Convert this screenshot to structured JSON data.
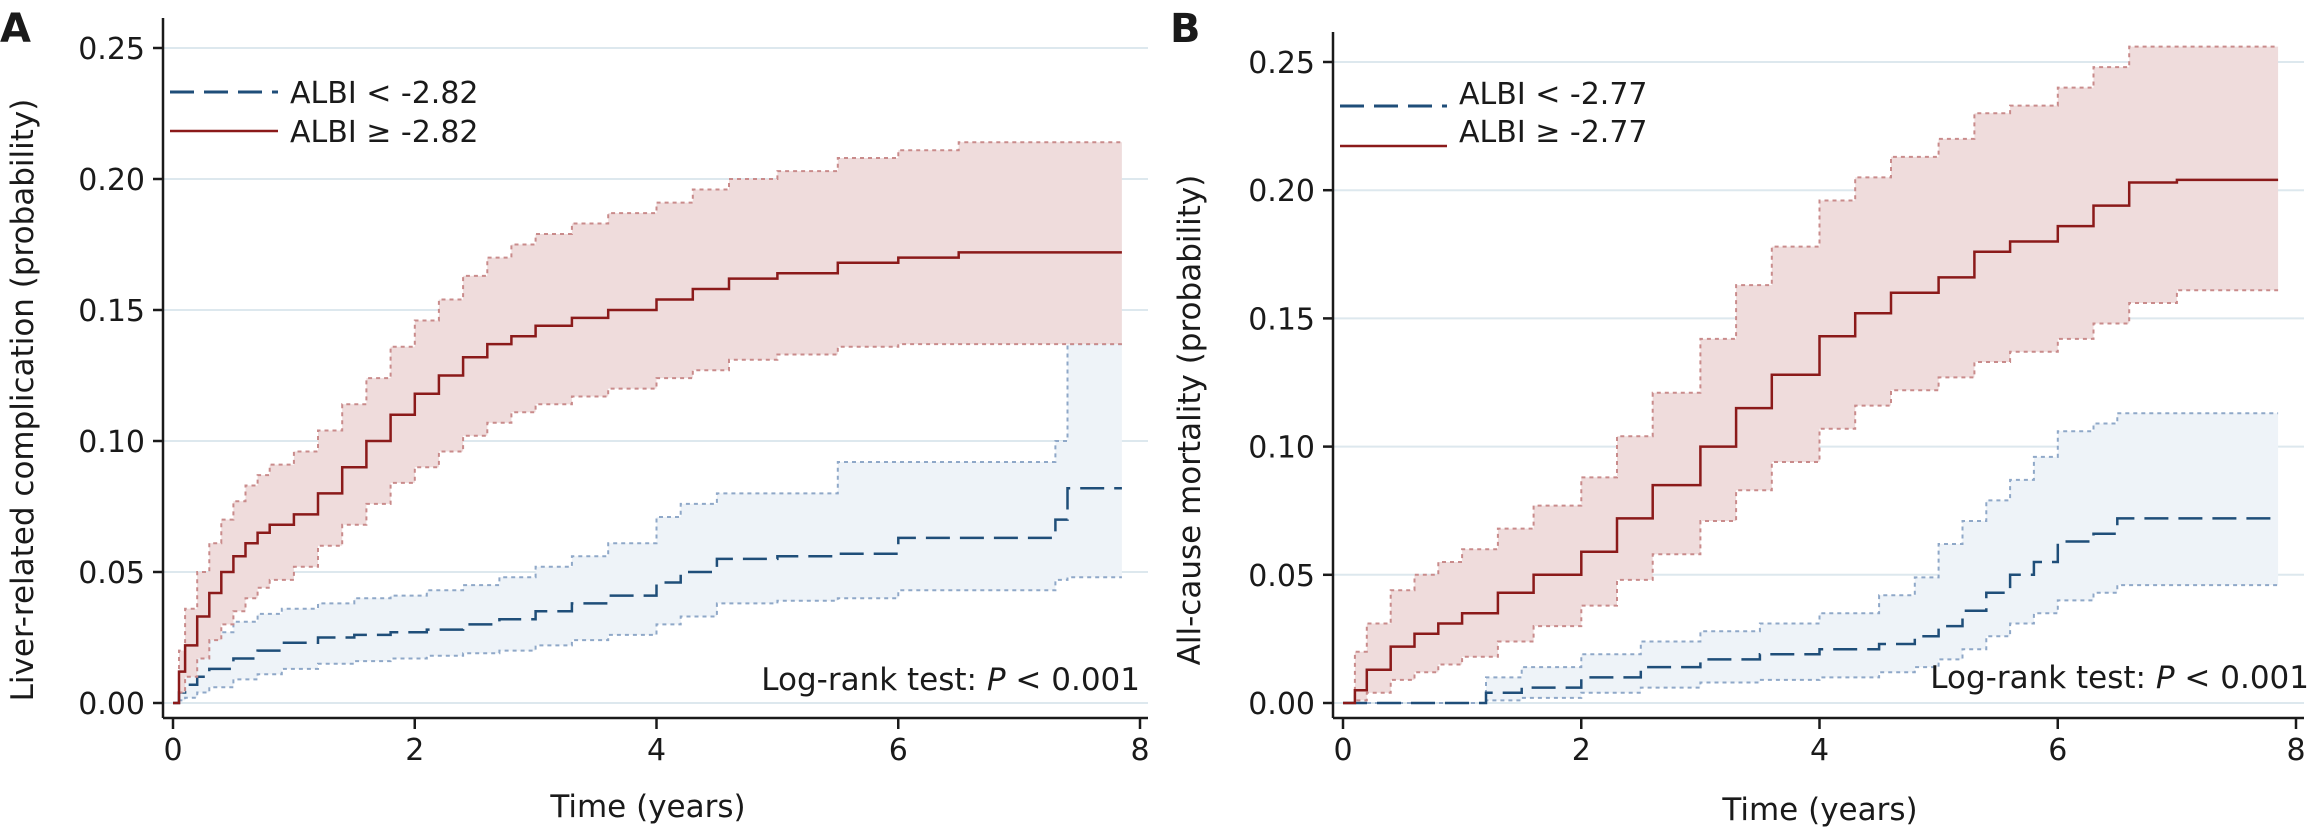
{
  "colors": {
    "series_low": "#1f4e79",
    "series_high": "#8b1a1a",
    "ci_low_fill": "#eef3f8",
    "ci_low_edge": "#8fa8c8",
    "ci_high_fill": "#efdcdc",
    "ci_high_edge": "#c98b8b",
    "grid": "#dde8ee",
    "axis": "#1a1a1a"
  },
  "chart_data": [
    {
      "type": "line",
      "panel_label": "A",
      "xlabel": "Time (years)",
      "ylabel": "Liver-related complication (probability)",
      "xlim": [
        0,
        8
      ],
      "ylim": [
        0,
        0.25
      ],
      "x_ticks": [
        "0",
        "2",
        "4",
        "6",
        "8"
      ],
      "y_ticks": [
        "0.00",
        "0.05",
        "0.10",
        "0.15",
        "0.20",
        "0.25"
      ],
      "grid": true,
      "legend_position": "top-left",
      "annotation": {
        "prefix": "Log-rank test: ",
        "italic": "P",
        "suffix": " < 0.001"
      },
      "series": [
        {
          "name": "ALBI < -2.82",
          "style": "dashed",
          "x": [
            0,
            0.05,
            0.1,
            0.2,
            0.3,
            0.5,
            0.7,
            0.9,
            1.2,
            1.5,
            1.8,
            2.1,
            2.4,
            2.7,
            3.0,
            3.3,
            3.6,
            4.0,
            4.2,
            4.5,
            5.0,
            5.5,
            6.0,
            6.5,
            7.0,
            7.3,
            7.4,
            7.85
          ],
          "y": [
            0,
            0.004,
            0.007,
            0.01,
            0.013,
            0.017,
            0.02,
            0.023,
            0.025,
            0.026,
            0.027,
            0.028,
            0.03,
            0.032,
            0.035,
            0.038,
            0.041,
            0.046,
            0.05,
            0.055,
            0.056,
            0.057,
            0.063,
            0.063,
            0.063,
            0.07,
            0.082,
            0.082
          ],
          "ci_lower": [
            0,
            0.001,
            0.002,
            0.004,
            0.006,
            0.009,
            0.011,
            0.013,
            0.015,
            0.016,
            0.017,
            0.018,
            0.019,
            0.02,
            0.022,
            0.024,
            0.026,
            0.03,
            0.033,
            0.038,
            0.039,
            0.04,
            0.043,
            0.043,
            0.043,
            0.047,
            0.048,
            0.048
          ],
          "ci_upper": [
            0,
            0.012,
            0.018,
            0.023,
            0.027,
            0.031,
            0.034,
            0.036,
            0.038,
            0.04,
            0.041,
            0.043,
            0.045,
            0.048,
            0.052,
            0.056,
            0.061,
            0.071,
            0.076,
            0.08,
            0.08,
            0.092,
            0.092,
            0.092,
            0.092,
            0.1,
            0.137,
            0.137
          ]
        },
        {
          "name": "ALBI ≥ -2.82",
          "style": "solid",
          "x": [
            0,
            0.05,
            0.1,
            0.2,
            0.3,
            0.4,
            0.5,
            0.6,
            0.7,
            0.8,
            1.0,
            1.2,
            1.4,
            1.6,
            1.8,
            2.0,
            2.2,
            2.4,
            2.6,
            2.8,
            3.0,
            3.3,
            3.6,
            4.0,
            4.3,
            4.6,
            5.0,
            5.5,
            6.0,
            6.5,
            7.0,
            7.85
          ],
          "y": [
            0,
            0.012,
            0.022,
            0.033,
            0.042,
            0.05,
            0.056,
            0.061,
            0.065,
            0.068,
            0.072,
            0.08,
            0.09,
            0.1,
            0.11,
            0.118,
            0.125,
            0.132,
            0.137,
            0.14,
            0.144,
            0.147,
            0.15,
            0.154,
            0.158,
            0.162,
            0.164,
            0.168,
            0.17,
            0.172,
            0.172,
            0.172
          ],
          "ci_lower": [
            0,
            0.004,
            0.01,
            0.017,
            0.024,
            0.03,
            0.035,
            0.04,
            0.044,
            0.047,
            0.052,
            0.06,
            0.068,
            0.076,
            0.084,
            0.09,
            0.096,
            0.102,
            0.107,
            0.111,
            0.114,
            0.117,
            0.12,
            0.124,
            0.127,
            0.131,
            0.133,
            0.136,
            0.137,
            0.137,
            0.137,
            0.137
          ],
          "ci_upper": [
            0,
            0.02,
            0.036,
            0.05,
            0.061,
            0.07,
            0.077,
            0.083,
            0.087,
            0.091,
            0.096,
            0.104,
            0.114,
            0.124,
            0.136,
            0.146,
            0.154,
            0.163,
            0.17,
            0.175,
            0.179,
            0.183,
            0.187,
            0.191,
            0.196,
            0.2,
            0.203,
            0.208,
            0.211,
            0.214,
            0.214,
            0.214
          ]
        }
      ]
    },
    {
      "type": "line",
      "panel_label": "B",
      "xlabel": "Time (years)",
      "ylabel": "All-cause mortality (probability)",
      "xlim": [
        0,
        8
      ],
      "ylim": [
        0,
        0.25
      ],
      "x_ticks": [
        "0",
        "2",
        "4",
        "6",
        "8"
      ],
      "y_ticks": [
        "0.00",
        "0.05",
        "0.10",
        "0.15",
        "0.20",
        "0.25"
      ],
      "grid": true,
      "legend_position": "top-left",
      "annotation": {
        "prefix": "Log-rank test: ",
        "italic": "P",
        "suffix": " < 0.001"
      },
      "series": [
        {
          "name": "ALBI < -2.77",
          "style": "dashed",
          "x": [
            0,
            1.1,
            1.2,
            1.5,
            2.0,
            2.5,
            3.0,
            3.5,
            4.0,
            4.5,
            4.8,
            5.0,
            5.2,
            5.4,
            5.6,
            5.8,
            6.0,
            6.3,
            6.5,
            7.0,
            7.85
          ],
          "y": [
            0,
            0,
            0.004,
            0.006,
            0.01,
            0.014,
            0.017,
            0.019,
            0.021,
            0.023,
            0.026,
            0.03,
            0.036,
            0.043,
            0.05,
            0.055,
            0.063,
            0.066,
            0.072,
            0.072,
            0.072
          ],
          "ci_lower": [
            0,
            0,
            0.001,
            0.002,
            0.004,
            0.006,
            0.008,
            0.009,
            0.01,
            0.012,
            0.014,
            0.017,
            0.021,
            0.026,
            0.031,
            0.035,
            0.04,
            0.043,
            0.046,
            0.046,
            0.046
          ],
          "ci_upper": [
            0,
            0,
            0.01,
            0.014,
            0.019,
            0.024,
            0.028,
            0.031,
            0.035,
            0.042,
            0.049,
            0.062,
            0.071,
            0.079,
            0.087,
            0.096,
            0.106,
            0.109,
            0.113,
            0.113,
            0.113
          ]
        },
        {
          "name": "ALBI ≥ -2.77",
          "style": "solid",
          "x": [
            0,
            0.1,
            0.2,
            0.4,
            0.6,
            0.8,
            1.0,
            1.3,
            1.6,
            2.0,
            2.3,
            2.6,
            3.0,
            3.3,
            3.6,
            4.0,
            4.3,
            4.6,
            5.0,
            5.3,
            5.6,
            6.0,
            6.3,
            6.6,
            7.0,
            7.85
          ],
          "y": [
            0,
            0.005,
            0.013,
            0.022,
            0.027,
            0.031,
            0.035,
            0.043,
            0.05,
            0.059,
            0.072,
            0.085,
            0.1,
            0.115,
            0.128,
            0.143,
            0.152,
            0.16,
            0.166,
            0.176,
            0.18,
            0.186,
            0.194,
            0.203,
            0.204,
            0.204
          ],
          "ci_lower": [
            0,
            0.001,
            0.004,
            0.009,
            0.012,
            0.015,
            0.018,
            0.024,
            0.03,
            0.038,
            0.048,
            0.058,
            0.071,
            0.083,
            0.094,
            0.107,
            0.116,
            0.122,
            0.127,
            0.133,
            0.137,
            0.142,
            0.148,
            0.156,
            0.161,
            0.161
          ],
          "ci_upper": [
            0,
            0.02,
            0.031,
            0.044,
            0.05,
            0.055,
            0.06,
            0.068,
            0.077,
            0.088,
            0.104,
            0.121,
            0.142,
            0.163,
            0.178,
            0.196,
            0.205,
            0.213,
            0.22,
            0.23,
            0.233,
            0.24,
            0.248,
            0.256,
            0.256,
            0.256
          ]
        }
      ]
    }
  ]
}
